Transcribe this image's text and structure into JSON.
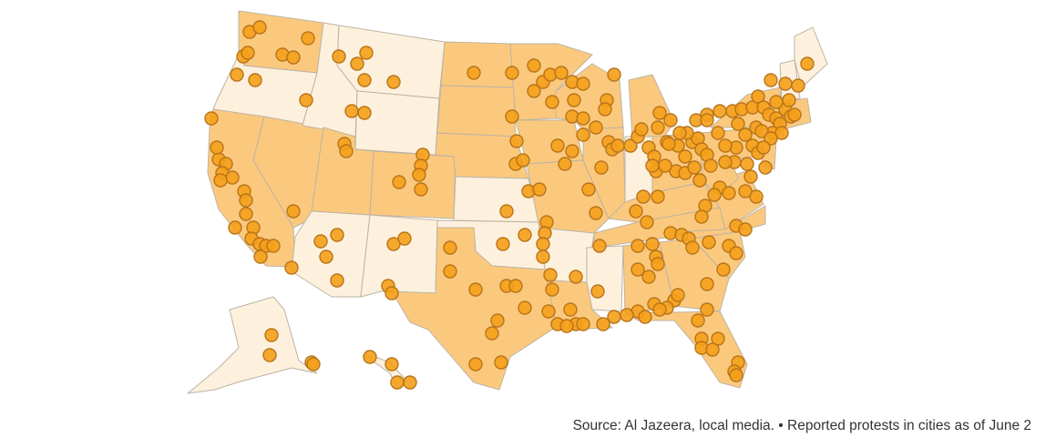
{
  "map": {
    "type": "protest-dot-map",
    "region": "United States",
    "colors": {
      "state_light": "#fdf1de",
      "state_mid": "#fbc97e",
      "dot_fill": "#f5a01a",
      "dot_stroke": "#b8741a",
      "border": "#bdb3a3"
    }
  },
  "caption": {
    "source": "Source: Al Jazeera, local media.",
    "separator": "•",
    "note": "Reported protests in cities as of June 2"
  }
}
